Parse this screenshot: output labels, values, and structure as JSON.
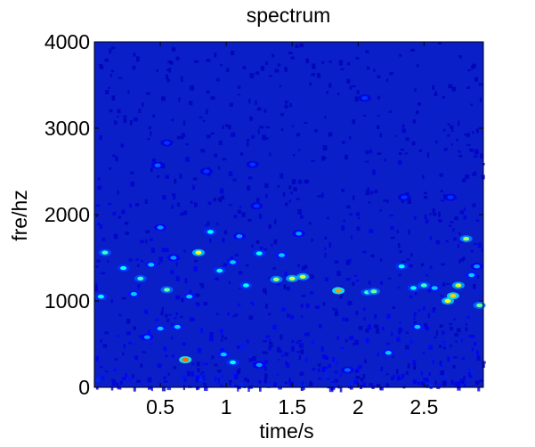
{
  "chart_data": {
    "type": "heatmap",
    "title": "spectrum",
    "xlabel": "time/s",
    "ylabel": "fre/hz",
    "xlim": [
      0,
      2.95
    ],
    "ylim": [
      0,
      4000
    ],
    "x_ticks": [
      0.5,
      1,
      1.5,
      2,
      2.5
    ],
    "x_tick_labels": [
      "0.5",
      "1",
      "1.5",
      "2",
      "2.5"
    ],
    "y_ticks": [
      0,
      1000,
      2000,
      3000,
      4000
    ],
    "y_tick_labels": [
      "0",
      "1000",
      "2000",
      "3000",
      "4000"
    ],
    "colormap": [
      "#00008f",
      "#0000ff",
      "#00ffff",
      "#ffff00",
      "#ff0000"
    ],
    "background_color": "#0a1fc8",
    "hotspots": [
      {
        "t": 0.08,
        "f": 1560,
        "v": 0.55
      },
      {
        "t": 0.05,
        "f": 1050,
        "v": 0.5
      },
      {
        "t": 0.22,
        "f": 1380,
        "v": 0.5
      },
      {
        "t": 0.35,
        "f": 1260,
        "v": 0.55
      },
      {
        "t": 0.43,
        "f": 1420,
        "v": 0.45
      },
      {
        "t": 0.3,
        "f": 1080,
        "v": 0.45
      },
      {
        "t": 0.55,
        "f": 1130,
        "v": 0.6
      },
      {
        "t": 0.6,
        "f": 1500,
        "v": 0.4
      },
      {
        "t": 0.72,
        "f": 1050,
        "v": 0.45
      },
      {
        "t": 0.79,
        "f": 1560,
        "v": 0.75
      },
      {
        "t": 0.88,
        "f": 1800,
        "v": 0.5
      },
      {
        "t": 0.95,
        "f": 1350,
        "v": 0.5
      },
      {
        "t": 1.05,
        "f": 1450,
        "v": 0.45
      },
      {
        "t": 1.1,
        "f": 1750,
        "v": 0.4
      },
      {
        "t": 1.15,
        "f": 1180,
        "v": 0.5
      },
      {
        "t": 1.25,
        "f": 1550,
        "v": 0.5
      },
      {
        "t": 1.38,
        "f": 1250,
        "v": 0.65
      },
      {
        "t": 1.42,
        "f": 1530,
        "v": 0.45
      },
      {
        "t": 1.5,
        "f": 1260,
        "v": 0.7
      },
      {
        "t": 1.58,
        "f": 1280,
        "v": 0.7
      },
      {
        "t": 1.55,
        "f": 1780,
        "v": 0.4
      },
      {
        "t": 1.85,
        "f": 1120,
        "v": 0.85
      },
      {
        "t": 2.07,
        "f": 1100,
        "v": 0.55
      },
      {
        "t": 2.12,
        "f": 1110,
        "v": 0.6
      },
      {
        "t": 2.33,
        "f": 1400,
        "v": 0.5
      },
      {
        "t": 2.42,
        "f": 1150,
        "v": 0.5
      },
      {
        "t": 2.5,
        "f": 1180,
        "v": 0.55
      },
      {
        "t": 2.58,
        "f": 1150,
        "v": 0.45
      },
      {
        "t": 2.68,
        "f": 1000,
        "v": 0.75
      },
      {
        "t": 2.72,
        "f": 1060,
        "v": 0.8
      },
      {
        "t": 2.76,
        "f": 1180,
        "v": 0.7
      },
      {
        "t": 2.82,
        "f": 1720,
        "v": 0.65
      },
      {
        "t": 2.86,
        "f": 1300,
        "v": 0.45
      },
      {
        "t": 2.92,
        "f": 950,
        "v": 0.6
      },
      {
        "t": 2.9,
        "f": 1400,
        "v": 0.4
      },
      {
        "t": 0.69,
        "f": 320,
        "v": 0.9
      },
      {
        "t": 0.63,
        "f": 700,
        "v": 0.45
      },
      {
        "t": 0.5,
        "f": 680,
        "v": 0.45
      },
      {
        "t": 0.98,
        "f": 380,
        "v": 0.45
      },
      {
        "t": 1.05,
        "f": 290,
        "v": 0.5
      },
      {
        "t": 1.25,
        "f": 260,
        "v": 0.4
      },
      {
        "t": 2.23,
        "f": 400,
        "v": 0.45
      },
      {
        "t": 1.92,
        "f": 200,
        "v": 0.35
      },
      {
        "t": 2.45,
        "f": 700,
        "v": 0.45
      },
      {
        "t": 0.4,
        "f": 580,
        "v": 0.4
      },
      {
        "t": 0.48,
        "f": 2570,
        "v": 0.35
      },
      {
        "t": 0.5,
        "f": 1850,
        "v": 0.4
      },
      {
        "t": 0.55,
        "f": 2830,
        "v": 0.3
      },
      {
        "t": 0.85,
        "f": 2500,
        "v": 0.3
      },
      {
        "t": 1.23,
        "f": 2100,
        "v": 0.3
      },
      {
        "t": 1.2,
        "f": 2580,
        "v": 0.3
      },
      {
        "t": 2.05,
        "f": 3350,
        "v": 0.3
      },
      {
        "t": 2.35,
        "f": 2200,
        "v": 0.3
      },
      {
        "t": 2.7,
        "f": 2200,
        "v": 0.3
      }
    ]
  }
}
